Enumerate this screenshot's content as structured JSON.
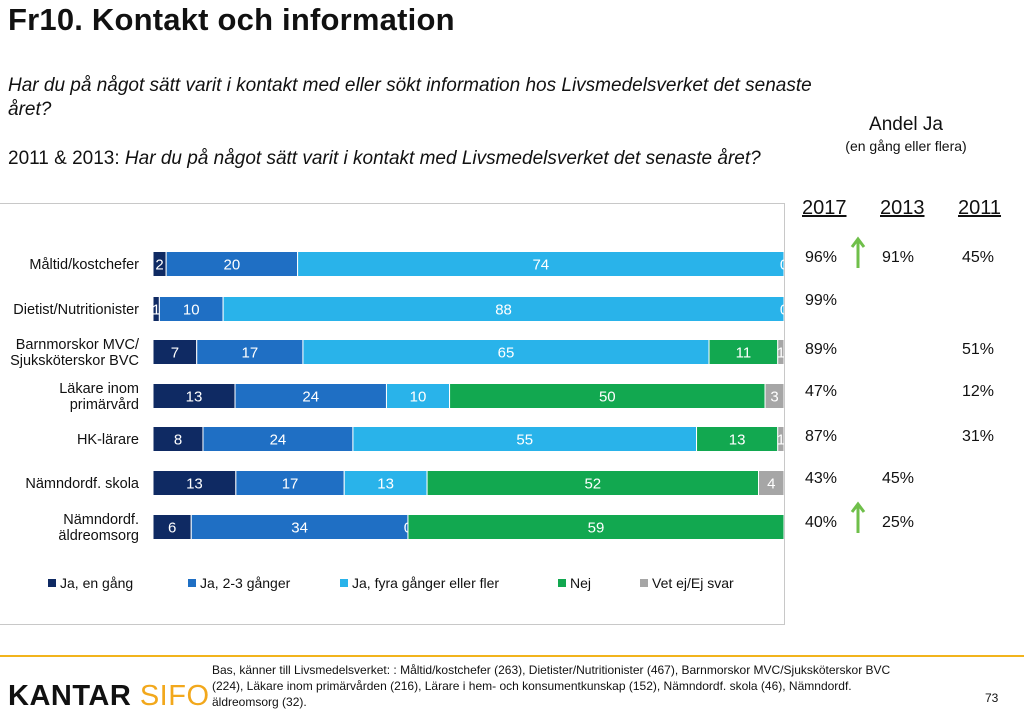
{
  "title": "Fr10. Kontakt och information",
  "question": "Har du på något sätt varit i kontakt med eller sökt information hos Livsmedelsverket det senaste året?",
  "question2_prefix": "2011 & 2013: ",
  "question2_text": "Har du på något sätt varit i kontakt med Livsmedelsverket det senaste året?",
  "andel_title": "Andel Ja",
  "andel_subtitle": "(en gång eller flera)",
  "years": [
    "2017",
    "2013",
    "2011"
  ],
  "colors": {
    "ja_en_gang": "#0f2a63",
    "ja_2_3": "#1f6fc4",
    "ja_fyra": "#29b3ea",
    "nej": "#12a850",
    "vet_ej": "#a6a6a6",
    "arrow": "#6fbf4a"
  },
  "chart_data": {
    "type": "bar",
    "orientation": "horizontal",
    "stacked": true,
    "percent": true,
    "categories": [
      "Måltid/kostchefer",
      "Dietist/Nutritionister",
      "Barnmorskor MVC/\nSjuksköterskor BVC",
      "Läkare inom\nprimärvård",
      "HK-lärare",
      "Nämndordf. skola",
      "Nämndordf.\näldreomsorg"
    ],
    "series": [
      {
        "name": "Ja, en gång",
        "values": [
          2,
          1,
          7,
          13,
          8,
          13,
          6
        ]
      },
      {
        "name": "Ja, 2-3 gånger",
        "values": [
          20,
          10,
          17,
          24,
          24,
          17,
          34
        ]
      },
      {
        "name": "Ja, fyra gånger eller fler",
        "values": [
          74,
          88,
          65,
          10,
          55,
          13,
          0
        ]
      },
      {
        "name": "Nej",
        "values": [
          0,
          0,
          11,
          50,
          13,
          52,
          59
        ]
      },
      {
        "name": "Vet ej/Ej svar",
        "values": [
          0,
          0,
          1,
          3,
          1,
          4,
          0
        ]
      }
    ],
    "xlim": [
      0,
      100
    ],
    "legend": "bottom"
  },
  "side_table": {
    "2017": [
      "96%",
      "99%",
      "89%",
      "47%",
      "87%",
      "43%",
      "40%"
    ],
    "2013": [
      "91%",
      "",
      "",
      "",
      "",
      "45%",
      "25%"
    ],
    "2011": [
      "45%",
      "",
      "51%",
      "12%",
      "31%",
      "",
      ""
    ],
    "arrows_up": [
      true,
      false,
      false,
      false,
      false,
      false,
      true
    ]
  },
  "footer": {
    "logo_part1": "KANTAR",
    "logo_part2": "SIFO",
    "base_note": "Bas, känner till Livsmedelsverket: : Måltid/kostchefer (263), Dietister/Nutritionister (467), Barnmorskor MVC/Sjuksköterskor BVC (224), Läkare inom primärvården (216), Lärare i hem- och konsumentkunskap (152), Nämndordf. skola (46), Nämndordf. äldreomsorg (32).",
    "page_number": "73"
  }
}
